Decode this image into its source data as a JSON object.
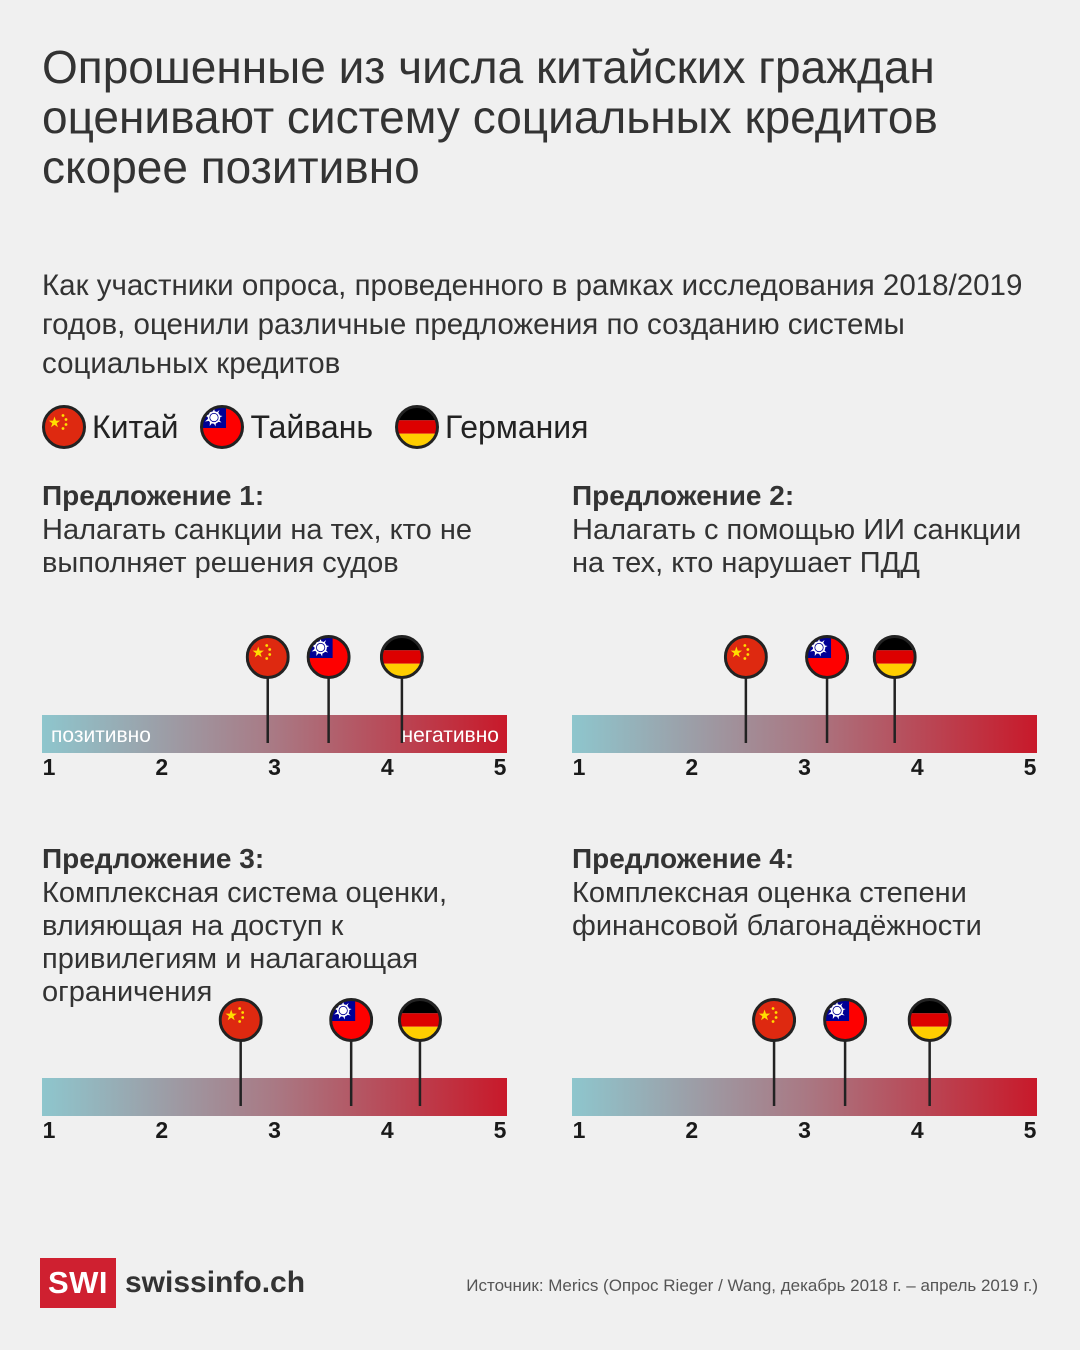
{
  "title": "Опрошенные из числа китайских граждан оценивают систему социальных кредитов скорее позитивно",
  "subtitle": "Как участники опроса, проведенного в рамках исследования 2018/2019 годов, оценили различные предложения по созданию системы социальных кредитов",
  "legend": [
    {
      "flag": "china-flag-icon",
      "label": "Китай"
    },
    {
      "flag": "taiwan-flag-icon",
      "label": "Тайвань"
    },
    {
      "flag": "germany-flag-icon",
      "label": "Германия"
    }
  ],
  "colors": {
    "scale_start": "#8ec6cd",
    "scale_end": "#c8192a",
    "china_red": "#de2910",
    "china_star": "#ffde00",
    "taiwan_blue": "#000095",
    "taiwan_red": "#fe0000",
    "germany_red": "#dd0000",
    "germany_gold": "#ffce00",
    "brand_red": "#cf2030"
  },
  "chart_data": [
    {
      "type": "scatter",
      "title": "Предложение 1:",
      "text": "Налагать санкции на тех, кто не выполняет решения судов",
      "xlim": [
        1,
        5
      ],
      "ticks": [
        "1",
        "2",
        "3",
        "4",
        "5"
      ],
      "scale_low_label": "позитивно",
      "scale_high_label": "негативно",
      "points": [
        {
          "series": "Китай",
          "flag": "china-flag-icon",
          "x": 2.94
        },
        {
          "series": "Тайвань",
          "flag": "taiwan-flag-icon",
          "x": 3.48
        },
        {
          "series": "Германия",
          "flag": "germany-flag-icon",
          "x": 4.13
        }
      ]
    },
    {
      "type": "scatter",
      "title": "Предложение 2:",
      "text": "Налагать с помощью ИИ санкции на тех, кто нарушает ПДД",
      "xlim": [
        1,
        5
      ],
      "ticks": [
        "1",
        "2",
        "3",
        "4",
        "5"
      ],
      "scale_low_label": "",
      "scale_high_label": "",
      "points": [
        {
          "series": "Китай",
          "flag": "china-flag-icon",
          "x": 2.48
        },
        {
          "series": "Тайвань",
          "flag": "taiwan-flag-icon",
          "x": 3.2
        },
        {
          "series": "Германия",
          "flag": "germany-flag-icon",
          "x": 3.8
        }
      ]
    },
    {
      "type": "scatter",
      "title": "Предложение 3:",
      "text": "Комплексная система оценки, влияющая на доступ к привилегиям и налагающая ограничения",
      "xlim": [
        1,
        5
      ],
      "ticks": [
        "1",
        "2",
        "3",
        "4",
        "5"
      ],
      "scale_low_label": "",
      "scale_high_label": "",
      "points": [
        {
          "series": "Китай",
          "flag": "china-flag-icon",
          "x": 2.7
        },
        {
          "series": "Тайвань",
          "flag": "taiwan-flag-icon",
          "x": 3.68
        },
        {
          "series": "Германия",
          "flag": "germany-flag-icon",
          "x": 4.29
        }
      ]
    },
    {
      "type": "scatter",
      "title": "Предложение 4:",
      "text": "Комплексная оценка степени финансовой благонадёжности",
      "xlim": [
        1,
        5
      ],
      "ticks": [
        "1",
        "2",
        "3",
        "4",
        "5"
      ],
      "scale_low_label": "",
      "scale_high_label": "",
      "points": [
        {
          "series": "Китай",
          "flag": "china-flag-icon",
          "x": 2.73
        },
        {
          "series": "Тайвань",
          "flag": "taiwan-flag-icon",
          "x": 3.36
        },
        {
          "series": "Германия",
          "flag": "germany-flag-icon",
          "x": 4.11
        }
      ]
    }
  ],
  "footer": {
    "logo": "SWI",
    "site": "swissinfo.ch",
    "source": "Источник: Merics (Опрос Rieger / Wang, декабрь 2018 г. – апрель  2019 г.)"
  }
}
